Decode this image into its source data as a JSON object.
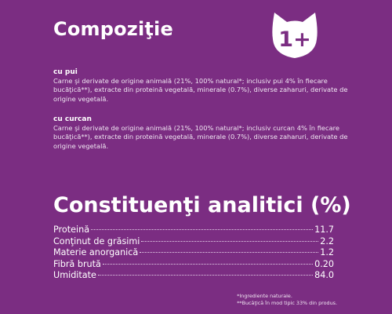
{
  "header": {
    "title": "Compoziţie"
  },
  "badge": {
    "text": "1+",
    "icon": "cat-head-icon",
    "color": "#ffffff",
    "text_color": "#7b2d82"
  },
  "composition": [
    {
      "heading": "cu pui",
      "text": "Carne şi derivate de origine animală (21%, 100% natural*; inclusiv pui 4% în fiecare bucăţică**), extracte din proteină vegetală, minerale (0.7%), diverse zaharuri, derivate de origine vegetală."
    },
    {
      "heading": "cu curcan",
      "text": "Carne şi derivate de origine animală (21%, 100% natural*; inclusiv curcan 4% în fiecare bucăţică**), extracte din proteină vegetală, minerale (0.7%), diverse zaharuri, derivate de origine vegetală."
    }
  ],
  "analytics": {
    "title": "Constituenţi analitici (%)",
    "rows": [
      {
        "label": "Proteină",
        "value": "11.7"
      },
      {
        "label": "Conţinut de grăsimi",
        "value": "2.2"
      },
      {
        "label": "Materie anorganică",
        "value": "1.2"
      },
      {
        "label": "Fibră brută",
        "value": "0.20"
      },
      {
        "label": "Umiditate",
        "value": "84.0"
      }
    ]
  },
  "footnotes": {
    "line1": "*Ingrediente naturale.",
    "line2": "**Bucăţică în mod tipic 33% din produs."
  },
  "colors": {
    "background": "#7b2d82",
    "text": "#ffffff"
  }
}
